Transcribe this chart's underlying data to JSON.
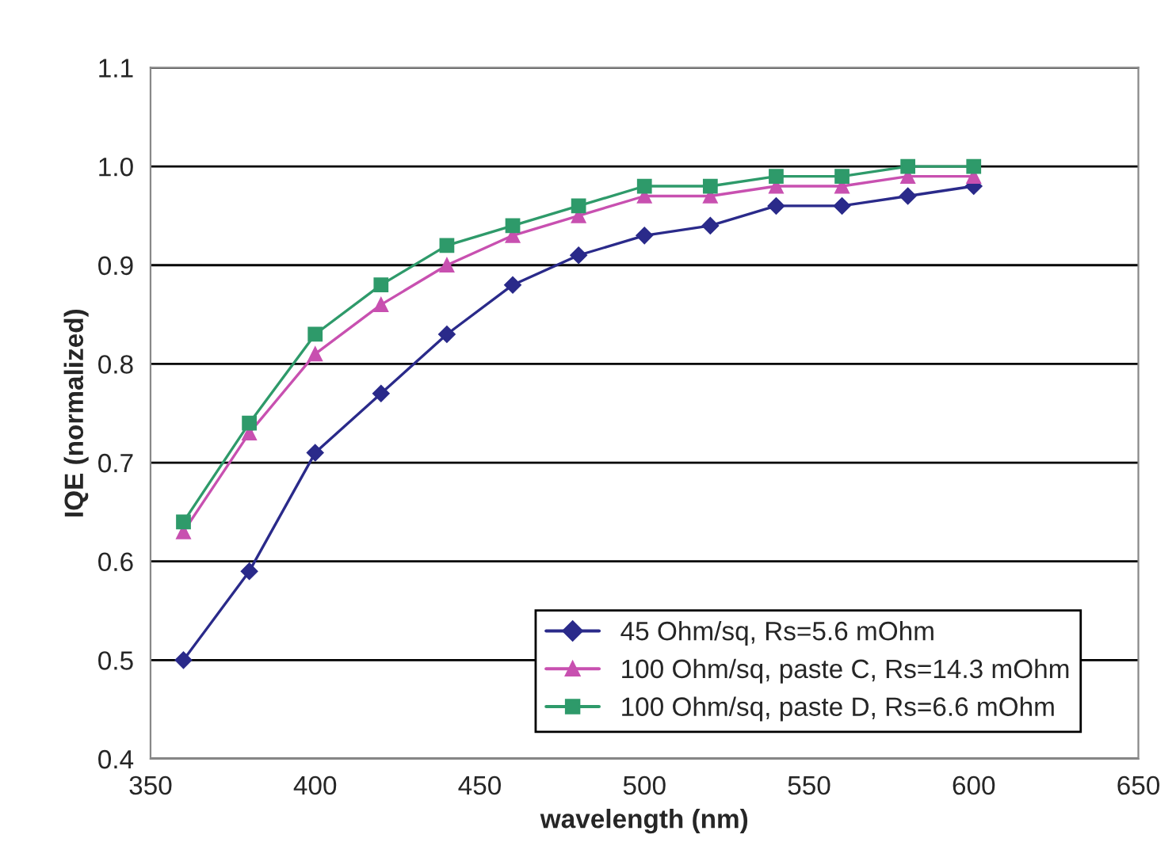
{
  "chart_data": {
    "type": "line",
    "xlabel": "wavelength (nm)",
    "ylabel": "IQE (normalized)",
    "x": [
      360,
      380,
      400,
      420,
      440,
      460,
      480,
      500,
      520,
      540,
      560,
      580,
      600
    ],
    "series": [
      {
        "name": "45 Ohm/sq, Rs=5.6 mOhm",
        "color": "#2a2a8a",
        "marker": "diamond",
        "values": [
          0.5,
          0.59,
          0.71,
          0.77,
          0.83,
          0.88,
          0.91,
          0.93,
          0.94,
          0.96,
          0.96,
          0.97,
          0.98
        ]
      },
      {
        "name": "100 Ohm/sq, paste C, Rs=14.3 mOhm",
        "color": "#c850b0",
        "marker": "triangle",
        "values": [
          0.63,
          0.73,
          0.81,
          0.86,
          0.9,
          0.93,
          0.95,
          0.97,
          0.97,
          0.98,
          0.98,
          0.99,
          0.99
        ]
      },
      {
        "name": "100 Ohm/sq, paste D, Rs=6.6 mOhm",
        "color": "#2e9a6a",
        "marker": "square",
        "values": [
          0.64,
          0.74,
          0.83,
          0.88,
          0.92,
          0.94,
          0.96,
          0.98,
          0.98,
          0.99,
          0.99,
          1.0,
          1.0
        ]
      }
    ],
    "xlim": [
      350,
      650
    ],
    "xticks": [
      350,
      400,
      450,
      500,
      550,
      600,
      650
    ],
    "ylim": [
      0.4,
      1.1
    ],
    "yticks": [
      {
        "value": 0.4,
        "label": "0.4"
      },
      {
        "value": 0.5,
        "label": "0.5"
      },
      {
        "value": 0.6,
        "label": "0.6"
      },
      {
        "value": 0.7,
        "label": "0.7"
      },
      {
        "value": 0.8,
        "label": "0.8"
      },
      {
        "value": 0.9,
        "label": "0.9"
      },
      {
        "value": 1.0,
        "label": "1.0"
      },
      {
        "value": 1.1,
        "label": "1.1"
      }
    ],
    "grid": "y",
    "legend": "bottom right",
    "line_style": "solid"
  }
}
